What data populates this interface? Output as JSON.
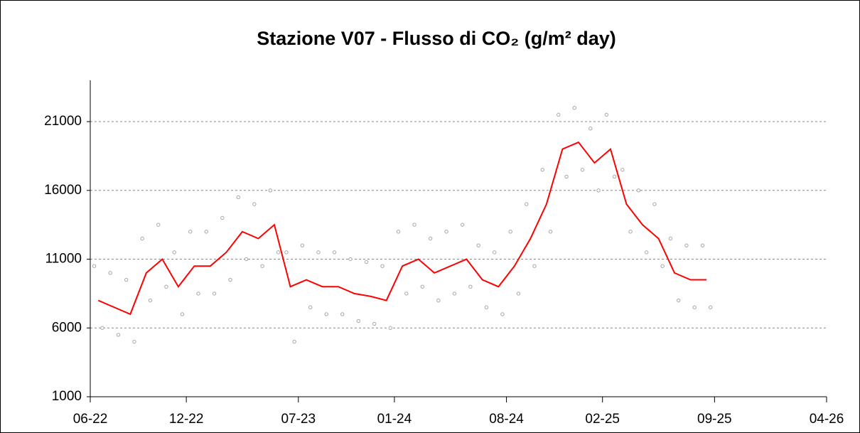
{
  "chart_data": {
    "type": "line",
    "title": "Stazione V07 - Flusso di CO₂ (g/m² day)",
    "xlim": [
      "06-22",
      "04-26"
    ],
    "xticks": [
      "06-22",
      "12-22",
      "07-23",
      "01-24",
      "08-24",
      "02-25",
      "09-25",
      "04-26"
    ],
    "ylim": [
      1000,
      24000
    ],
    "yticks": [
      1000,
      6000,
      11000,
      16000,
      21000
    ],
    "grid": true,
    "series": [
      {
        "color": "#a6a6a6",
        "marker": "scatter",
        "x": [
          "06-22",
          "06-22",
          "07-22",
          "07-22",
          "08-22",
          "08-22",
          "09-22",
          "09-22",
          "10-22",
          "10-22",
          "11-22",
          "11-22",
          "12-22",
          "12-22",
          "01-23",
          "01-23",
          "02-23",
          "02-23",
          "03-23",
          "03-23",
          "04-23",
          "04-23",
          "05-23",
          "05-23",
          "06-23",
          "06-23",
          "07-23",
          "07-23",
          "08-23",
          "08-23",
          "09-23",
          "09-23",
          "10-23",
          "10-23",
          "11-23",
          "11-23",
          "12-23",
          "12-23",
          "01-24",
          "01-24",
          "02-24",
          "02-24",
          "03-24",
          "03-24",
          "04-24",
          "04-24",
          "05-24",
          "05-24",
          "06-24",
          "06-24",
          "07-24",
          "07-24",
          "08-24",
          "08-24",
          "09-24",
          "09-24",
          "10-24",
          "10-24",
          "11-24",
          "11-24",
          "12-24",
          "12-24",
          "01-25",
          "01-25",
          "02-25",
          "02-25",
          "03-25",
          "03-25",
          "04-25",
          "04-25",
          "05-25",
          "05-25",
          "06-25",
          "06-25",
          "07-25",
          "07-25",
          "08-25",
          "08-25"
        ],
        "values": [
          10500,
          6000,
          10000,
          5500,
          9500,
          5000,
          12500,
          8000,
          13500,
          9000,
          11500,
          7000,
          13000,
          8500,
          13000,
          8500,
          14000,
          9500,
          15500,
          11000,
          15000,
          10500,
          16000,
          11500,
          11500,
          5000,
          12000,
          7500,
          11500,
          7000,
          11500,
          7000,
          11000,
          6500,
          10800,
          6300,
          10500,
          6000,
          13000,
          8500,
          13500,
          9000,
          12500,
          8000,
          13000,
          8500,
          13500,
          9000,
          12000,
          7500,
          11500,
          7000,
          13000,
          8500,
          15000,
          10500,
          17500,
          13000,
          21500,
          17000,
          22000,
          17500,
          20500,
          16000,
          21500,
          17000,
          17500,
          13000,
          16000,
          11500,
          15000,
          10500,
          12500,
          8000,
          12000,
          7500,
          12000,
          7500
        ]
      },
      {
        "color": "#ff0000",
        "marker": "line",
        "x": [
          "06-22",
          "07-22",
          "08-22",
          "09-22",
          "10-22",
          "11-22",
          "12-22",
          "01-23",
          "02-23",
          "03-23",
          "04-23",
          "05-23",
          "06-23",
          "07-23",
          "08-23",
          "09-23",
          "10-23",
          "11-23",
          "12-23",
          "01-24",
          "02-24",
          "03-24",
          "04-24",
          "05-24",
          "06-24",
          "07-24",
          "08-24",
          "09-24",
          "10-24",
          "11-24",
          "12-24",
          "01-25",
          "02-25",
          "03-25",
          "04-25",
          "05-25",
          "06-25",
          "07-25",
          "08-25"
        ],
        "values": [
          8000,
          7500,
          7000,
          10000,
          11000,
          9000,
          10500,
          10500,
          11500,
          13000,
          12500,
          13500,
          9000,
          9500,
          9000,
          9000,
          8500,
          8300,
          8000,
          10500,
          11000,
          10000,
          10500,
          11000,
          9500,
          9000,
          10500,
          12500,
          15000,
          19000,
          19500,
          18000,
          19000,
          15000,
          13500,
          12500,
          10000,
          9500,
          9500
        ]
      }
    ]
  }
}
